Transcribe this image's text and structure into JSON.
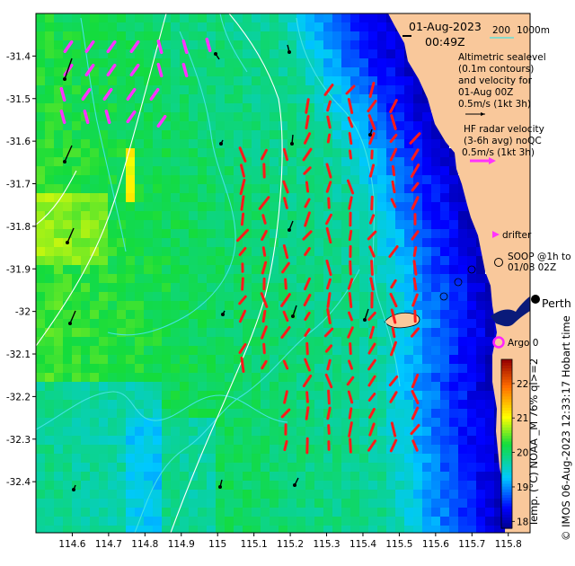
{
  "header": {
    "date": "01-Aug-2023",
    "time": "00:49Z"
  },
  "scale_bar": {
    "label_200": "200",
    "label_1000": "1000m"
  },
  "legend": {
    "altimetry_lines": [
      "Altimetric sealevel",
      "(0.1m contours)",
      "and velocity for",
      "01-Aug 00Z",
      "0.5m/s (1kt 3h)"
    ],
    "hf_lines": [
      "HF radar velocity",
      "(3-6h avg) noQC",
      "0.5m/s (1kt 3h)"
    ],
    "drifter": "drifter",
    "soop_lines": [
      "SOOP @1h to",
      "01/08 02Z"
    ],
    "city": "Perth",
    "argo": "Argo 0"
  },
  "colorbar": {
    "ticks": [
      18,
      19,
      20,
      21,
      22
    ],
    "range": [
      17.8,
      22.7
    ],
    "label": "Temp. (°C) NOAA _M 76% ql>=2"
  },
  "credit": "© IMOS 06-Aug-2023 12:33:17 Hobart time",
  "axes": {
    "x_ticks": [
      "114.6",
      "114.7",
      "114.8",
      "114.9",
      "115",
      "115.1",
      "115.2",
      "115.3",
      "115.4",
      "115.5",
      "115.6",
      "115.7",
      "115.8"
    ],
    "y_ticks": [
      "-31.4",
      "-31.5",
      "-31.6",
      "-31.7",
      "-31.8",
      "-31.9",
      "-32",
      "-32.1",
      "-32.2",
      "-32.3",
      "-32.4"
    ],
    "x_range": [
      114.5,
      115.86
    ],
    "y_range": [
      -31.3,
      -32.52
    ]
  },
  "colors": {
    "land": "#f9c89b",
    "hf_vector": "#ff1a1a",
    "altimetry_vector": "#ff33ff",
    "contour": "#45e3e3",
    "bathymetry": "#ffffff"
  }
}
